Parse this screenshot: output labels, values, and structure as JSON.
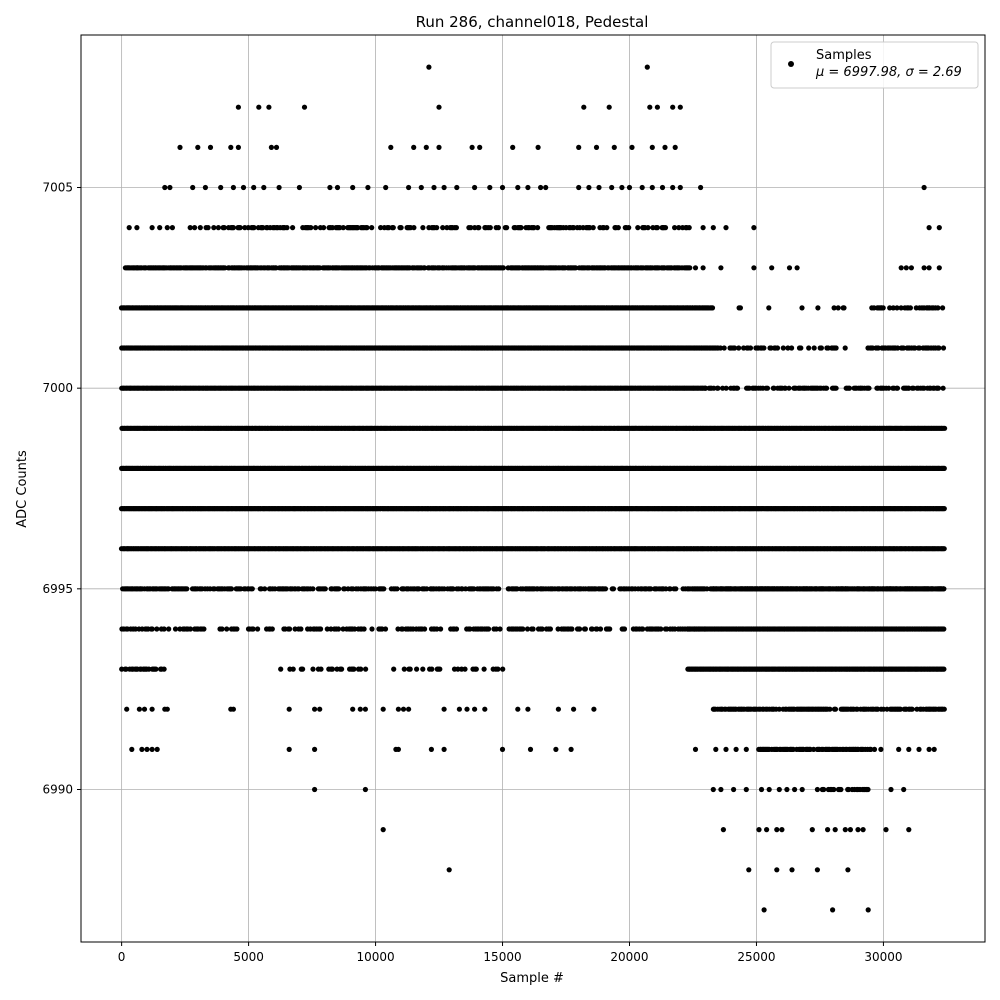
{
  "chart_data": {
    "type": "scatter",
    "title": "Run 286, channel018, Pedestal",
    "xlabel": "Sample #",
    "ylabel": "ADC Counts",
    "xlim": [
      -1600,
      34000
    ],
    "ylim": [
      6986.2,
      7008.8
    ],
    "xticks": [
      0,
      5000,
      10000,
      15000,
      20000,
      25000,
      30000
    ],
    "yticks": [
      6990,
      6995,
      7000,
      7005
    ],
    "grid": true,
    "legend": {
      "placement": "top-right",
      "entries": [
        "Samples",
        "μ = 6997.98, σ = 2.69"
      ]
    },
    "series": [
      {
        "name": "Samples",
        "color": "#000000",
        "marker": "circle",
        "n_samples": 32400,
        "bands": [
          {
            "y": 6995,
            "segments": [
              [
                0,
                2600,
                0.9
              ],
              [
                2800,
                32400,
                0.6
              ],
              [
                23300,
                32400,
                1.0
              ]
            ]
          },
          {
            "y": 6996,
            "segments": [
              [
                0,
                32400,
                1.0
              ]
            ]
          },
          {
            "y": 6997,
            "segments": [
              [
                0,
                32400,
                1.0
              ]
            ]
          },
          {
            "y": 6998,
            "segments": [
              [
                0,
                32400,
                1.0
              ]
            ]
          },
          {
            "y": 6999,
            "segments": [
              [
                0,
                32400,
                1.0
              ]
            ]
          },
          {
            "y": 7000,
            "segments": [
              [
                0,
                23000,
                1.0
              ],
              [
                23000,
                32400,
                0.5
              ]
            ]
          },
          {
            "y": 7001,
            "segments": [
              [
                0,
                23500,
                1.0
              ],
              [
                23500,
                29000,
                0.3
              ],
              [
                29400,
                32400,
                0.7
              ]
            ]
          },
          {
            "y": 7002,
            "segments": [
              [
                0,
                23300,
                1.0
              ],
              [
                24000,
                28500,
                0.08
              ],
              [
                29400,
                32400,
                0.4
              ]
            ]
          },
          {
            "y": 7003,
            "segments": [
              [
                150,
                22400,
                0.85
              ]
            ]
          },
          {
            "y": 7004,
            "segments": [
              [
                2600,
                22500,
                0.4
              ]
            ]
          },
          {
            "y": 6994,
            "segments": [
              [
                0,
                23000,
                0.4
              ],
              [
                22300,
                32400,
                1.0
              ]
            ]
          },
          {
            "y": 6993,
            "segments": [
              [
                0,
                1800,
                0.6
              ],
              [
                6000,
                15000,
                0.2
              ],
              [
                22300,
                32400,
                1.0
              ]
            ]
          },
          {
            "y": 6992,
            "segments": [
              [
                23300,
                32400,
                0.7
              ]
            ]
          },
          {
            "y": 6991,
            "segments": [
              [
                25100,
                29700,
                0.8
              ]
            ]
          },
          {
            "y": 6990,
            "segments": [
              [
                27600,
                29500,
                0.5
              ]
            ]
          }
        ],
        "points": [
          [
            12100,
            7008
          ],
          [
            20700,
            7008
          ],
          [
            4600,
            7007
          ],
          [
            5400,
            7007
          ],
          [
            5800,
            7007
          ],
          [
            7200,
            7007
          ],
          [
            12500,
            7007
          ],
          [
            18200,
            7007
          ],
          [
            19200,
            7007
          ],
          [
            20800,
            7007
          ],
          [
            21100,
            7007
          ],
          [
            21700,
            7007
          ],
          [
            22000,
            7007
          ],
          [
            2300,
            7006
          ],
          [
            3000,
            7006
          ],
          [
            3500,
            7006
          ],
          [
            4300,
            7006
          ],
          [
            4600,
            7006
          ],
          [
            5900,
            7006
          ],
          [
            6100,
            7006
          ],
          [
            10600,
            7006
          ],
          [
            11500,
            7006
          ],
          [
            12000,
            7006
          ],
          [
            12500,
            7006
          ],
          [
            13800,
            7006
          ],
          [
            14100,
            7006
          ],
          [
            15400,
            7006
          ],
          [
            16400,
            7006
          ],
          [
            18000,
            7006
          ],
          [
            18700,
            7006
          ],
          [
            19400,
            7006
          ],
          [
            20100,
            7006
          ],
          [
            20900,
            7006
          ],
          [
            21400,
            7006
          ],
          [
            21800,
            7006
          ],
          [
            1700,
            7005
          ],
          [
            1900,
            7005
          ],
          [
            2800,
            7005
          ],
          [
            3300,
            7005
          ],
          [
            3900,
            7005
          ],
          [
            4400,
            7005
          ],
          [
            4800,
            7005
          ],
          [
            5200,
            7005
          ],
          [
            5600,
            7005
          ],
          [
            6200,
            7005
          ],
          [
            7000,
            7005
          ],
          [
            8200,
            7005
          ],
          [
            8500,
            7005
          ],
          [
            9100,
            7005
          ],
          [
            9700,
            7005
          ],
          [
            10400,
            7005
          ],
          [
            11300,
            7005
          ],
          [
            11800,
            7005
          ],
          [
            12300,
            7005
          ],
          [
            12700,
            7005
          ],
          [
            13200,
            7005
          ],
          [
            13900,
            7005
          ],
          [
            14500,
            7005
          ],
          [
            15000,
            7005
          ],
          [
            15600,
            7005
          ],
          [
            16000,
            7005
          ],
          [
            16500,
            7005
          ],
          [
            16700,
            7005
          ],
          [
            18000,
            7005
          ],
          [
            18400,
            7005
          ],
          [
            18800,
            7005
          ],
          [
            19300,
            7005
          ],
          [
            19700,
            7005
          ],
          [
            20000,
            7005
          ],
          [
            20500,
            7005
          ],
          [
            20900,
            7005
          ],
          [
            21300,
            7005
          ],
          [
            21700,
            7005
          ],
          [
            22000,
            7005
          ],
          [
            22800,
            7005
          ],
          [
            31600,
            7005
          ],
          [
            300,
            7004
          ],
          [
            600,
            7004
          ],
          [
            1200,
            7004
          ],
          [
            1500,
            7004
          ],
          [
            1800,
            7004
          ],
          [
            2000,
            7004
          ],
          [
            22900,
            7004
          ],
          [
            23300,
            7004
          ],
          [
            23800,
            7004
          ],
          [
            24900,
            7004
          ],
          [
            31800,
            7004
          ],
          [
            32200,
            7004
          ],
          [
            200,
            7003
          ],
          [
            600,
            7003
          ],
          [
            22600,
            7003
          ],
          [
            22900,
            7003
          ],
          [
            23600,
            7003
          ],
          [
            24900,
            7003
          ],
          [
            25600,
            7003
          ],
          [
            26300,
            7003
          ],
          [
            26600,
            7003
          ],
          [
            30700,
            7003
          ],
          [
            30900,
            7003
          ],
          [
            31100,
            7003
          ],
          [
            31600,
            7003
          ],
          [
            31800,
            7003
          ],
          [
            32200,
            7003
          ],
          [
            200,
            6992
          ],
          [
            700,
            6992
          ],
          [
            900,
            6992
          ],
          [
            1200,
            6992
          ],
          [
            1700,
            6992
          ],
          [
            1800,
            6992
          ],
          [
            4300,
            6992
          ],
          [
            4400,
            6992
          ],
          [
            6600,
            6992
          ],
          [
            7600,
            6992
          ],
          [
            7800,
            6992
          ],
          [
            9100,
            6992
          ],
          [
            9400,
            6992
          ],
          [
            9600,
            6992
          ],
          [
            10300,
            6992
          ],
          [
            10900,
            6992
          ],
          [
            11100,
            6992
          ],
          [
            11300,
            6992
          ],
          [
            12700,
            6992
          ],
          [
            13300,
            6992
          ],
          [
            13600,
            6992
          ],
          [
            13900,
            6992
          ],
          [
            14300,
            6992
          ],
          [
            15600,
            6992
          ],
          [
            16000,
            6992
          ],
          [
            17200,
            6992
          ],
          [
            17800,
            6992
          ],
          [
            18600,
            6992
          ],
          [
            400,
            6991
          ],
          [
            800,
            6991
          ],
          [
            1000,
            6991
          ],
          [
            1200,
            6991
          ],
          [
            1400,
            6991
          ],
          [
            6600,
            6991
          ],
          [
            7600,
            6991
          ],
          [
            10800,
            6991
          ],
          [
            10900,
            6991
          ],
          [
            12200,
            6991
          ],
          [
            12700,
            6991
          ],
          [
            15000,
            6991
          ],
          [
            16100,
            6991
          ],
          [
            17100,
            6991
          ],
          [
            17700,
            6991
          ],
          [
            22600,
            6991
          ],
          [
            23400,
            6991
          ],
          [
            23800,
            6991
          ],
          [
            24200,
            6991
          ],
          [
            24600,
            6991
          ],
          [
            29900,
            6991
          ],
          [
            30600,
            6991
          ],
          [
            31000,
            6991
          ],
          [
            31400,
            6991
          ],
          [
            31800,
            6991
          ],
          [
            32000,
            6991
          ],
          [
            7600,
            6990
          ],
          [
            9600,
            6990
          ],
          [
            23300,
            6990
          ],
          [
            23600,
            6990
          ],
          [
            24100,
            6990
          ],
          [
            24600,
            6990
          ],
          [
            25200,
            6990
          ],
          [
            25500,
            6990
          ],
          [
            25900,
            6990
          ],
          [
            26200,
            6990
          ],
          [
            26500,
            6990
          ],
          [
            26800,
            6990
          ],
          [
            27400,
            6990
          ],
          [
            30300,
            6990
          ],
          [
            30800,
            6990
          ],
          [
            10300,
            6989
          ],
          [
            23700,
            6989
          ],
          [
            25100,
            6989
          ],
          [
            25400,
            6989
          ],
          [
            25800,
            6989
          ],
          [
            26000,
            6989
          ],
          [
            27200,
            6989
          ],
          [
            27800,
            6989
          ],
          [
            28100,
            6989
          ],
          [
            28500,
            6989
          ],
          [
            28700,
            6989
          ],
          [
            29000,
            6989
          ],
          [
            29200,
            6989
          ],
          [
            30100,
            6989
          ],
          [
            31000,
            6989
          ],
          [
            12900,
            6988
          ],
          [
            24700,
            6988
          ],
          [
            25800,
            6988
          ],
          [
            26400,
            6988
          ],
          [
            27400,
            6988
          ],
          [
            28600,
            6988
          ],
          [
            25300,
            6987
          ],
          [
            28000,
            6987
          ],
          [
            29400,
            6987
          ]
        ]
      }
    ]
  }
}
